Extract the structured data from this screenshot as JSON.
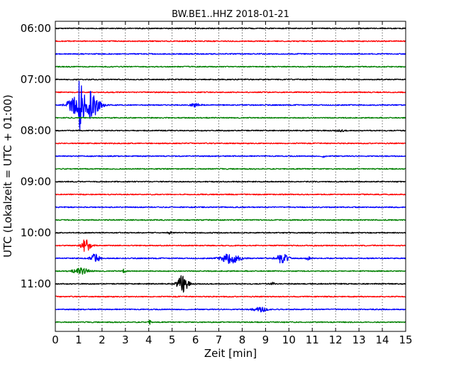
{
  "chart_data": {
    "type": "line",
    "title": "BW.BE1..HHZ 2018-01-21",
    "xlabel": "Zeit  [min]",
    "ylabel": "UTC (Lokalzeit = UTC + 01:00)",
    "xlim": [
      0,
      15
    ],
    "x_ticks": [
      "0",
      "1",
      "2",
      "3",
      "4",
      "5",
      "6",
      "7",
      "8",
      "9",
      "10",
      "11",
      "12",
      "13",
      "14",
      "15"
    ],
    "y_ticks": [
      "06:00",
      "07:00",
      "08:00",
      "09:00",
      "10:00",
      "11:00"
    ],
    "grid": "vertical dotted at each minute",
    "trace_interval_minutes": 15,
    "trace_color_cycle": [
      "#000000",
      "#ff0000",
      "#0000ff",
      "#008000"
    ],
    "series": [
      {
        "start": "06:00",
        "color": "#000000",
        "events": []
      },
      {
        "start": "06:15",
        "color": "#ff0000",
        "events": []
      },
      {
        "start": "06:30",
        "color": "#0000ff",
        "events": []
      },
      {
        "start": "06:45",
        "color": "#008000",
        "events": []
      },
      {
        "start": "07:00",
        "color": "#000000",
        "events": []
      },
      {
        "start": "07:15",
        "color": "#ff0000",
        "events": []
      },
      {
        "start": "07:30",
        "color": "#0000ff",
        "events": [
          {
            "t": 0.7,
            "amp": 0.6,
            "dur": 0.4
          },
          {
            "t": 1.05,
            "amp": 3.0,
            "dur": 0.3
          },
          {
            "t": 1.55,
            "amp": 1.6,
            "dur": 0.3
          },
          {
            "t": 1.8,
            "amp": 0.5,
            "dur": 0.4
          },
          {
            "t": 6.0,
            "amp": 0.2,
            "dur": 0.3
          }
        ]
      },
      {
        "start": "07:45",
        "color": "#008000",
        "events": []
      },
      {
        "start": "08:00",
        "color": "#000000",
        "events": [
          {
            "t": 12.2,
            "amp": 0.1,
            "dur": 0.3
          }
        ]
      },
      {
        "start": "08:15",
        "color": "#ff0000",
        "events": []
      },
      {
        "start": "08:30",
        "color": "#0000ff",
        "events": [
          {
            "t": 11.5,
            "amp": 0.2,
            "dur": 0.1
          }
        ]
      },
      {
        "start": "08:45",
        "color": "#008000",
        "events": []
      },
      {
        "start": "09:00",
        "color": "#000000",
        "events": []
      },
      {
        "start": "09:15",
        "color": "#ff0000",
        "events": []
      },
      {
        "start": "09:30",
        "color": "#0000ff",
        "events": []
      },
      {
        "start": "09:45",
        "color": "#008000",
        "events": []
      },
      {
        "start": "10:00",
        "color": "#000000",
        "events": [
          {
            "t": 4.9,
            "amp": 0.15,
            "dur": 0.1
          }
        ]
      },
      {
        "start": "10:15",
        "color": "#ff0000",
        "events": [
          {
            "t": 1.3,
            "amp": 0.8,
            "dur": 0.3
          }
        ]
      },
      {
        "start": "10:30",
        "color": "#0000ff",
        "events": [
          {
            "t": 1.7,
            "amp": 0.55,
            "dur": 0.3
          },
          {
            "t": 7.5,
            "amp": 0.6,
            "dur": 0.6
          },
          {
            "t": 9.7,
            "amp": 0.55,
            "dur": 0.4
          },
          {
            "t": 10.8,
            "amp": 0.3,
            "dur": 0.15
          }
        ]
      },
      {
        "start": "10:45",
        "color": "#008000",
        "events": [
          {
            "t": 1.1,
            "amp": 0.35,
            "dur": 0.5
          },
          {
            "t": 2.95,
            "amp": 0.25,
            "dur": 0.1
          }
        ]
      },
      {
        "start": "11:00",
        "color": "#000000",
        "events": [
          {
            "t": 5.45,
            "amp": 1.0,
            "dur": 0.35
          },
          {
            "t": 9.3,
            "amp": 0.25,
            "dur": 0.1
          }
        ]
      },
      {
        "start": "11:15",
        "color": "#ff0000",
        "events": []
      },
      {
        "start": "11:30",
        "color": "#0000ff",
        "events": [
          {
            "t": 8.8,
            "amp": 0.25,
            "dur": 0.5
          }
        ]
      },
      {
        "start": "11:45",
        "color": "#008000",
        "events": [
          {
            "t": 4.05,
            "amp": 0.25,
            "dur": 0.1
          }
        ]
      }
    ]
  }
}
